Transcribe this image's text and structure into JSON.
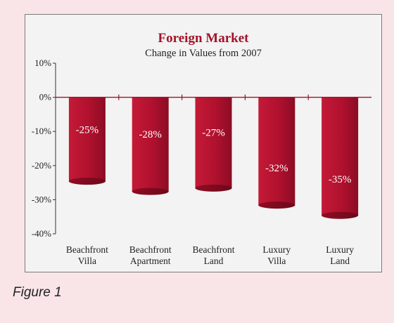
{
  "figure_caption": "Figure 1",
  "chart_data": {
    "type": "bar",
    "title": "Foreign Market",
    "subtitle": "Change in Values from 2007",
    "categories": [
      [
        "Beachfront",
        "Villa"
      ],
      [
        "Beachfront",
        "Apartment"
      ],
      [
        "Beachfront",
        "Land"
      ],
      [
        "Luxury",
        "Villa"
      ],
      [
        "Luxury",
        "Land"
      ]
    ],
    "values": [
      -25,
      -28,
      -27,
      -32,
      -35
    ],
    "data_labels": [
      "-25%",
      "-28%",
      "-27%",
      "-32%",
      "-35%"
    ],
    "y_ticks": [
      10,
      0,
      -10,
      -20,
      -30,
      -40
    ],
    "y_tick_labels": [
      "10%",
      "0%",
      "-10%",
      "-20%",
      "-30%",
      "-40%"
    ],
    "ylim": [
      -40,
      10
    ],
    "xlabel": "",
    "ylabel": "",
    "grid": false,
    "colors": {
      "bar": "#b0112e",
      "bar_dark": "#7e0a20",
      "accent": "#a3132a",
      "zero_line": "#a01228"
    }
  }
}
